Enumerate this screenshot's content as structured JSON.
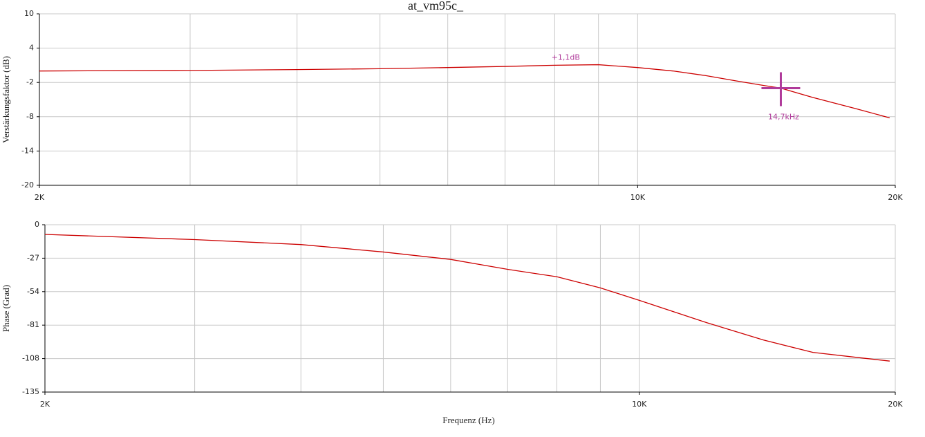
{
  "chart_data": [
    {
      "type": "line",
      "title": "at_vm95c_",
      "ylabel": "Verstärkungsfaktor (dB)",
      "xscale": "log",
      "x": [
        2000,
        3000,
        4000,
        5000,
        6000,
        7000,
        8000,
        9000,
        10000,
        11000,
        12000,
        13000,
        14000,
        14700,
        16000,
        18000,
        19700
      ],
      "series": [
        {
          "color": "#cc0000",
          "values": [
            0.0,
            0.1,
            0.25,
            0.4,
            0.6,
            0.8,
            1.0,
            1.1,
            0.6,
            0.0,
            -0.8,
            -1.7,
            -2.5,
            -3.0,
            -4.6,
            -6.6,
            -8.2
          ]
        }
      ],
      "xlim": [
        2000,
        20000
      ],
      "xticks": [
        {
          "value": 2000,
          "label": "2K"
        },
        {
          "value": 10000,
          "label": "10K"
        },
        {
          "value": 20000,
          "label": "20K"
        }
      ],
      "xminor": [
        3000,
        4000,
        5000,
        6000,
        7000,
        8000,
        9000
      ],
      "ylim": [
        -20,
        10
      ],
      "yticks": [
        10,
        4,
        -2,
        -8,
        -14,
        -20
      ],
      "grid": true,
      "annotations": [
        {
          "text": "+1,1dB",
          "x": 8000,
          "y": 1.1,
          "color": "#b03a9a"
        },
        {
          "text": "14,7kHz",
          "x": 14700,
          "y": -3.0,
          "color": "#b03a9a",
          "marker": "cross"
        }
      ]
    },
    {
      "type": "line",
      "ylabel": "Phase (Grad)",
      "xlabel": "Frequenz (Hz)",
      "xscale": "log",
      "x": [
        2000,
        3000,
        4000,
        5000,
        6000,
        7000,
        8000,
        9000,
        10000,
        12000,
        14000,
        16000,
        18000,
        19700
      ],
      "series": [
        {
          "color": "#cc0000",
          "values": [
            -7.8,
            -12,
            -16,
            -22,
            -28,
            -36,
            -42,
            -51,
            -61,
            -79,
            -93,
            -103,
            -107,
            -110
          ]
        }
      ],
      "xlim": [
        2000,
        20000
      ],
      "xticks": [
        {
          "value": 2000,
          "label": "2K"
        },
        {
          "value": 10000,
          "label": "10K"
        },
        {
          "value": 20000,
          "label": "20K"
        }
      ],
      "xminor": [
        3000,
        4000,
        5000,
        6000,
        7000,
        8000,
        9000
      ],
      "ylim": [
        -135,
        0
      ],
      "yticks": [
        0,
        -27,
        -54,
        -81,
        -108,
        -135
      ],
      "grid": true
    }
  ]
}
